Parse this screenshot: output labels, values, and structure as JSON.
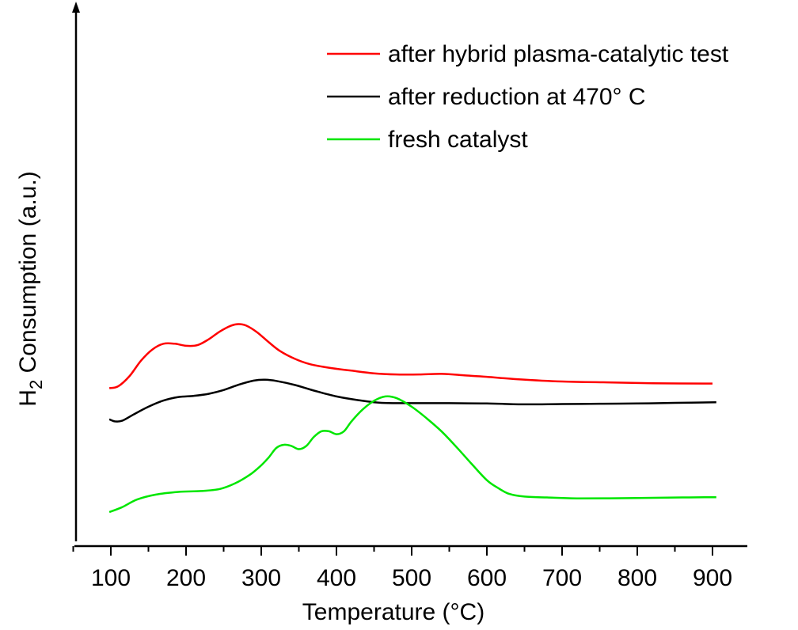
{
  "chart_data": {
    "type": "line",
    "title": "",
    "xlabel": "Temperature (°C)",
    "ylabel_main": "H",
    "ylabel_sub": "2",
    "ylabel_rest": " Consumption (a.u.)",
    "xlim": [
      50,
      940
    ],
    "ylim": [
      0,
      100
    ],
    "xticks": [
      100,
      200,
      300,
      400,
      500,
      600,
      700,
      800,
      900
    ],
    "yticks": [],
    "grid": false,
    "legend_position": "top-right",
    "series": [
      {
        "name": "after hybrid plasma-catalytic test",
        "color": "#ff0000",
        "points": [
          [
            98,
            45.8
          ],
          [
            110,
            46.5
          ],
          [
            125,
            50
          ],
          [
            140,
            55.2
          ],
          [
            155,
            59
          ],
          [
            170,
            61
          ],
          [
            185,
            61
          ],
          [
            200,
            60.3
          ],
          [
            215,
            60.5
          ],
          [
            230,
            62.5
          ],
          [
            245,
            65.2
          ],
          [
            260,
            67.2
          ],
          [
            270,
            67.7
          ],
          [
            280,
            67.2
          ],
          [
            295,
            64.8
          ],
          [
            310,
            61.5
          ],
          [
            325,
            58.5
          ],
          [
            345,
            55.8
          ],
          [
            365,
            54
          ],
          [
            390,
            52.8
          ],
          [
            420,
            51.8
          ],
          [
            450,
            50.9
          ],
          [
            480,
            50.5
          ],
          [
            510,
            50.5
          ],
          [
            540,
            50.7
          ],
          [
            570,
            50.2
          ],
          [
            600,
            49.7
          ],
          [
            640,
            48.9
          ],
          [
            700,
            48.1
          ],
          [
            760,
            47.8
          ],
          [
            820,
            47.5
          ],
          [
            900,
            47.4
          ]
        ]
      },
      {
        "name": "after reduction at 470° C",
        "color": "#000000",
        "points": [
          [
            98,
            35.2
          ],
          [
            105,
            34.5
          ],
          [
            115,
            34.7
          ],
          [
            130,
            36.8
          ],
          [
            150,
            39.5
          ],
          [
            170,
            41.6
          ],
          [
            190,
            42.8
          ],
          [
            210,
            43.2
          ],
          [
            230,
            43.9
          ],
          [
            250,
            45.2
          ],
          [
            270,
            47
          ],
          [
            290,
            48.4
          ],
          [
            305,
            48.7
          ],
          [
            320,
            48.3
          ],
          [
            345,
            46.9
          ],
          [
            370,
            45
          ],
          [
            400,
            43
          ],
          [
            430,
            41.7
          ],
          [
            460,
            40.8
          ],
          [
            500,
            40.7
          ],
          [
            550,
            40.7
          ],
          [
            600,
            40.6
          ],
          [
            650,
            40.3
          ],
          [
            700,
            40.4
          ],
          [
            750,
            40.5
          ],
          [
            800,
            40.6
          ],
          [
            850,
            40.8
          ],
          [
            905,
            41
          ]
        ]
      },
      {
        "name": "fresh catalyst",
        "color": "#00e600",
        "points": [
          [
            98,
            3.5
          ],
          [
            115,
            5.2
          ],
          [
            135,
            7.8
          ],
          [
            160,
            9.5
          ],
          [
            190,
            10.4
          ],
          [
            220,
            10.7
          ],
          [
            245,
            11.4
          ],
          [
            265,
            13.3
          ],
          [
            285,
            16.3
          ],
          [
            300,
            19.5
          ],
          [
            310,
            22.2
          ],
          [
            320,
            25.4
          ],
          [
            330,
            26.5
          ],
          [
            340,
            26.1
          ],
          [
            350,
            25
          ],
          [
            360,
            26.1
          ],
          [
            370,
            29.2
          ],
          [
            380,
            31.1
          ],
          [
            390,
            31.1
          ],
          [
            400,
            30.1
          ],
          [
            410,
            31.1
          ],
          [
            420,
            34.5
          ],
          [
            435,
            38.6
          ],
          [
            450,
            41.5
          ],
          [
            465,
            43
          ],
          [
            480,
            42.4
          ],
          [
            500,
            39.5
          ],
          [
            520,
            35.5
          ],
          [
            540,
            31
          ],
          [
            560,
            25.6
          ],
          [
            580,
            19.9
          ],
          [
            600,
            14.4
          ],
          [
            615,
            11.7
          ],
          [
            630,
            9.7
          ],
          [
            650,
            8.8
          ],
          [
            680,
            8.5
          ],
          [
            720,
            8.2
          ],
          [
            800,
            8.3
          ],
          [
            860,
            8.5
          ],
          [
            905,
            8.6
          ]
        ]
      }
    ]
  }
}
